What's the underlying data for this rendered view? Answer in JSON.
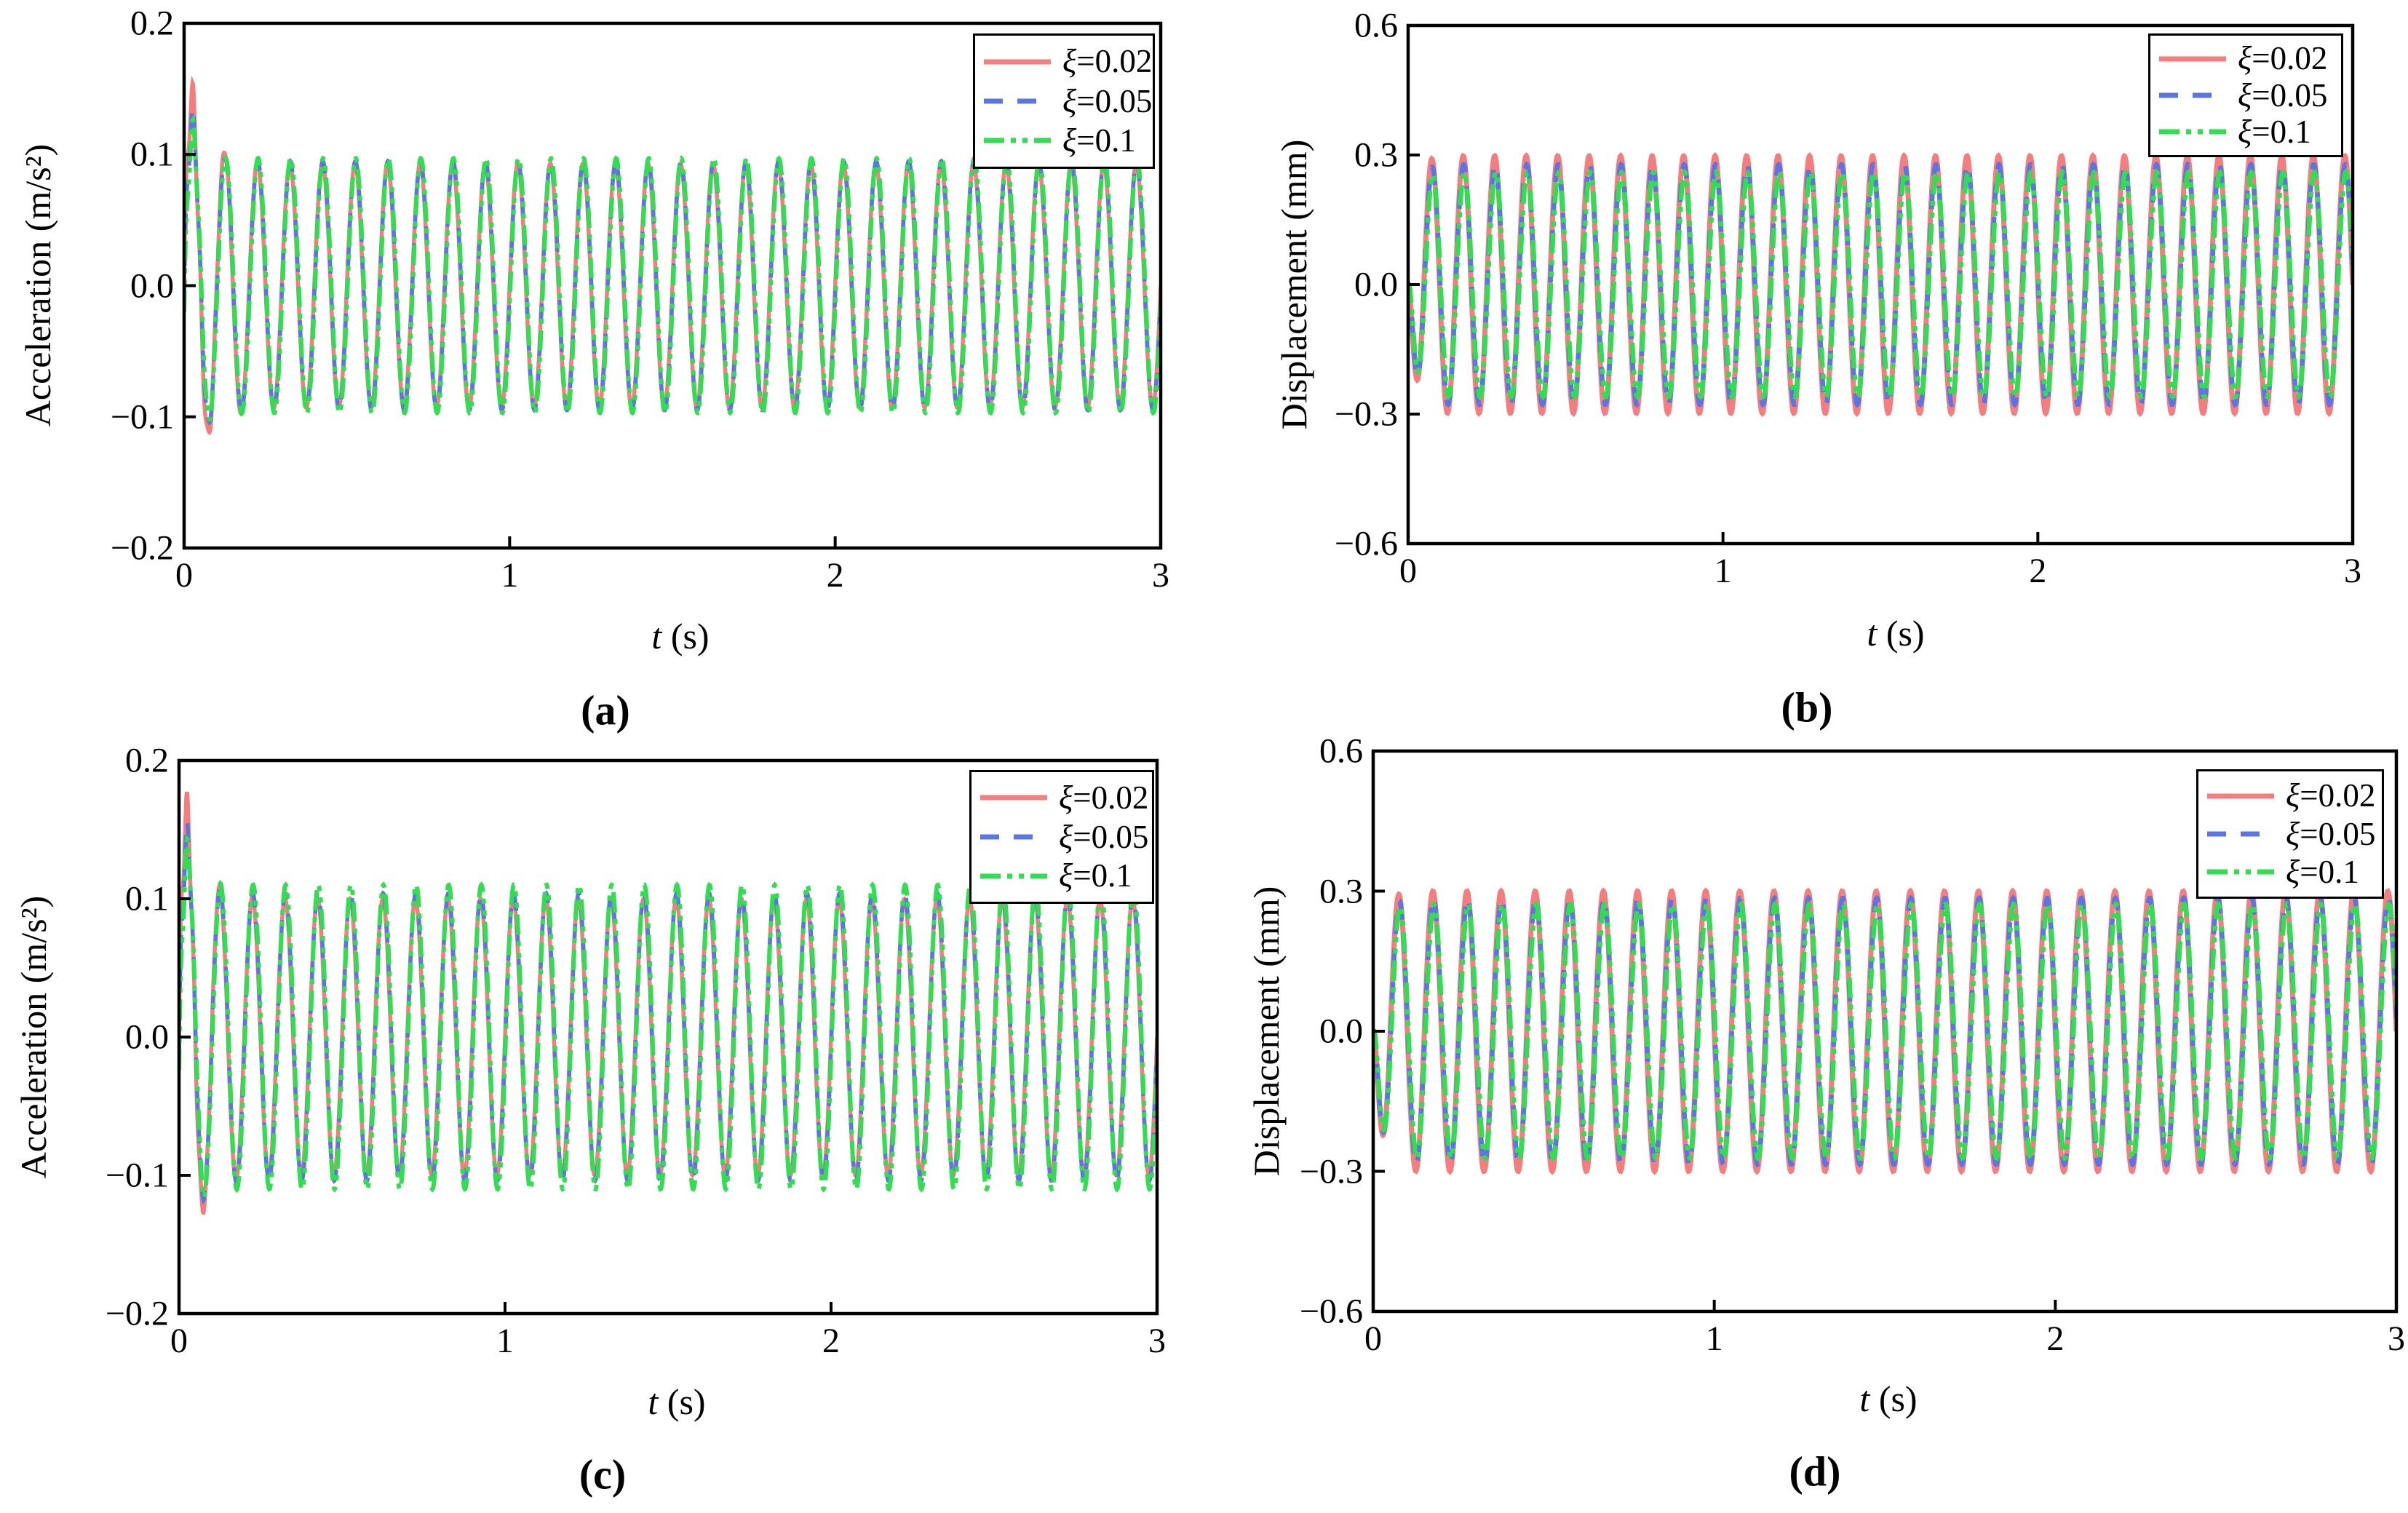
{
  "figure": {
    "background": "#ffffff",
    "axis_color": "#000000",
    "legend_labels": [
      {
        "sym": "ξ",
        "val": "=0.02"
      },
      {
        "sym": "ξ",
        "val": "=0.05"
      },
      {
        "sym": "ξ",
        "val": "=0.1"
      }
    ]
  },
  "chart_data": [
    {
      "panel": "(a)",
      "type": "line",
      "signal": "acceleration",
      "ylabel": "Acceleration (m/s²)",
      "xlabel_var": "t",
      "xlabel_unit": "(s)",
      "xlim": [
        0,
        3
      ],
      "ylim": [
        -0.2,
        0.2
      ],
      "xtick_values": [
        0,
        1,
        2,
        3
      ],
      "xtick_labels": [
        "0",
        "1",
        "2",
        "3"
      ],
      "ytick_values": [
        0.2,
        0.1,
        0.0,
        -0.1,
        -0.2
      ],
      "ytick_labels": [
        "0.2",
        "0.1",
        "0.0",
        "−0.1",
        "−0.2"
      ],
      "grid": false,
      "legend_position": "top-right",
      "frequency_hz": 10,
      "duration_s": 3,
      "series": [
        {
          "label_sym": "ξ",
          "label_val": "=0.02",
          "color": "#f57d7d",
          "line_style": "solid",
          "lw": 5.5,
          "sign": 1,
          "steady_amplitude": 0.093,
          "initial_peak": 0.135,
          "transient_amp": 0.075,
          "transient_tau": 0.06,
          "wiggle_amp": 0.025,
          "wiggle_freq": 45,
          "wiggle_tau": 0.05,
          "phase": 0,
          "ramp_tau": 0
        },
        {
          "label_sym": "ξ",
          "label_val": "=0.05",
          "color": "#5b74e8",
          "line_style": "dashed",
          "lw": 5.5,
          "sign": 1,
          "steady_amplitude": 0.095,
          "initial_peak": 0.125,
          "transient_amp": 0.055,
          "transient_tau": 0.045,
          "wiggle_amp": 0.02,
          "wiggle_freq": 45,
          "wiggle_tau": 0.045,
          "phase": 0.07,
          "ramp_tau": 0
        },
        {
          "label_sym": "ξ",
          "label_val": "=0.1",
          "color": "#2fdf4f",
          "line_style": "dash-dot-dot",
          "lw": 6,
          "sign": 1,
          "steady_amplitude": 0.097,
          "initial_peak": 0.115,
          "transient_amp": 0.045,
          "transient_tau": 0.035,
          "wiggle_amp": 0.018,
          "wiggle_freq": 45,
          "wiggle_tau": 0.04,
          "phase": 0.14,
          "ramp_tau": 0
        }
      ]
    },
    {
      "panel": "(b)",
      "type": "line",
      "signal": "displacement",
      "ylabel": "Displacement (mm)",
      "xlabel_var": "t",
      "xlabel_unit": "(s)",
      "xlim": [
        0,
        3
      ],
      "ylim": [
        -0.6,
        0.6
      ],
      "xtick_values": [
        0,
        1,
        2,
        3
      ],
      "xtick_labels": [
        "0",
        "1",
        "2",
        "3"
      ],
      "ytick_values": [
        0.6,
        0.3,
        0.0,
        -0.3,
        -0.6
      ],
      "ytick_labels": [
        "0.6",
        "0.3",
        "0.0",
        "−0.3",
        "−0.6"
      ],
      "grid": false,
      "legend_position": "top-right",
      "frequency_hz": 10,
      "duration_s": 3,
      "series": [
        {
          "label_sym": "ξ",
          "label_val": "=0.02",
          "color": "#f57d7d",
          "line_style": "solid",
          "lw": 7,
          "sign": -1,
          "steady_amplitude": 0.298,
          "transient_amp": 0,
          "transient_tau": 0,
          "wiggle_amp": 0,
          "wiggle_freq": 0,
          "wiggle_tau": 0,
          "phase": 0,
          "ramp_tau": 0.02
        },
        {
          "label_sym": "ξ",
          "label_val": "=0.05",
          "color": "#5b74e8",
          "line_style": "dashed",
          "lw": 6.5,
          "sign": -1,
          "steady_amplitude": 0.278,
          "transient_amp": 0,
          "transient_tau": 0,
          "wiggle_amp": 0,
          "wiggle_freq": 0,
          "wiggle_tau": 0,
          "phase": 0.1,
          "ramp_tau": 0.02
        },
        {
          "label_sym": "ξ",
          "label_val": "=0.1",
          "color": "#2fdf4f",
          "line_style": "dash-dot-dot",
          "lw": 6.5,
          "sign": -1,
          "steady_amplitude": 0.26,
          "transient_amp": 0,
          "transient_tau": 0,
          "wiggle_amp": 0,
          "wiggle_freq": 0,
          "wiggle_tau": 0,
          "phase": 0.2,
          "ramp_tau": 0.02
        }
      ]
    },
    {
      "panel": "(c)",
      "type": "line",
      "signal": "acceleration",
      "ylabel": "Acceleration (m/s²)",
      "xlabel_var": "t",
      "xlabel_unit": "(s)",
      "xlim": [
        0,
        3
      ],
      "ylim": [
        -0.2,
        0.2
      ],
      "xtick_values": [
        0,
        1,
        2,
        3
      ],
      "xtick_labels": [
        "0",
        "1",
        "2",
        "3"
      ],
      "ytick_values": [
        0.2,
        0.1,
        0.0,
        -0.1,
        -0.2
      ],
      "ytick_labels": [
        "0.2",
        "0.1",
        "0.0",
        "−0.1",
        "−0.2"
      ],
      "grid": false,
      "legend_position": "top-right",
      "frequency_hz": 10,
      "duration_s": 3,
      "series": [
        {
          "label_sym": "ξ",
          "label_val": "=0.02",
          "color": "#f57d7d",
          "line_style": "solid",
          "lw": 5.5,
          "sign": 1,
          "steady_amplitude": 0.1,
          "initial_peak": 0.155,
          "transient_amp": 0.1,
          "transient_tau": 0.05,
          "wiggle_amp": 0.03,
          "wiggle_freq": 50,
          "wiggle_tau": 0.04,
          "phase": 0,
          "ramp_tau": 0
        },
        {
          "label_sym": "ξ",
          "label_val": "=0.05",
          "color": "#5b74e8",
          "line_style": "dashed",
          "lw": 5.5,
          "sign": 1,
          "steady_amplitude": 0.104,
          "initial_peak": 0.145,
          "transient_amp": 0.075,
          "transient_tau": 0.04,
          "wiggle_amp": 0.024,
          "wiggle_freq": 50,
          "wiggle_tau": 0.035,
          "phase": 0.07,
          "ramp_tau": 0
        },
        {
          "label_sym": "ξ",
          "label_val": "=0.1",
          "color": "#2fdf4f",
          "line_style": "dash-dot-dot",
          "lw": 6,
          "sign": 1,
          "steady_amplitude": 0.11,
          "initial_peak": 0.135,
          "transient_amp": 0.06,
          "transient_tau": 0.03,
          "wiggle_amp": 0.02,
          "wiggle_freq": 50,
          "wiggle_tau": 0.03,
          "phase": 0.14,
          "ramp_tau": 0
        }
      ]
    },
    {
      "panel": "(d)",
      "type": "line",
      "signal": "displacement",
      "ylabel": "Displacement (mm)",
      "xlabel_var": "t",
      "xlabel_unit": "(s)",
      "xlim": [
        0,
        3
      ],
      "ylim": [
        -0.6,
        0.6
      ],
      "xtick_values": [
        0,
        1,
        2,
        3
      ],
      "xtick_labels": [
        "0",
        "1",
        "2",
        "3"
      ],
      "ytick_values": [
        0.6,
        0.3,
        0.0,
        -0.3,
        -0.6
      ],
      "ytick_labels": [
        "0.6",
        "0.3",
        "0.0",
        "−0.3",
        "−0.6"
      ],
      "grid": false,
      "legend_position": "top-right",
      "frequency_hz": 10,
      "duration_s": 3,
      "series": [
        {
          "label_sym": "ξ",
          "label_val": "=0.02",
          "color": "#f57d7d",
          "line_style": "solid",
          "lw": 7,
          "sign": -1,
          "steady_amplitude": 0.3,
          "transient_amp": 0,
          "transient_tau": 0,
          "wiggle_amp": 0,
          "wiggle_freq": 0,
          "wiggle_tau": 0,
          "phase": 0,
          "ramp_tau": 0.02
        },
        {
          "label_sym": "ξ",
          "label_val": "=0.05",
          "color": "#5b74e8",
          "line_style": "dashed",
          "lw": 6.5,
          "sign": -1,
          "steady_amplitude": 0.285,
          "transient_amp": 0,
          "transient_tau": 0,
          "wiggle_amp": 0,
          "wiggle_freq": 0,
          "wiggle_tau": 0,
          "phase": 0.1,
          "ramp_tau": 0.02
        },
        {
          "label_sym": "ξ",
          "label_val": "=0.1",
          "color": "#2fdf4f",
          "line_style": "dash-dot-dot",
          "lw": 6.5,
          "sign": -1,
          "steady_amplitude": 0.272,
          "transient_amp": 0,
          "transient_tau": 0,
          "wiggle_amp": 0,
          "wiggle_freq": 0,
          "wiggle_tau": 0,
          "phase": 0.2,
          "ramp_tau": 0.02
        }
      ]
    }
  ]
}
